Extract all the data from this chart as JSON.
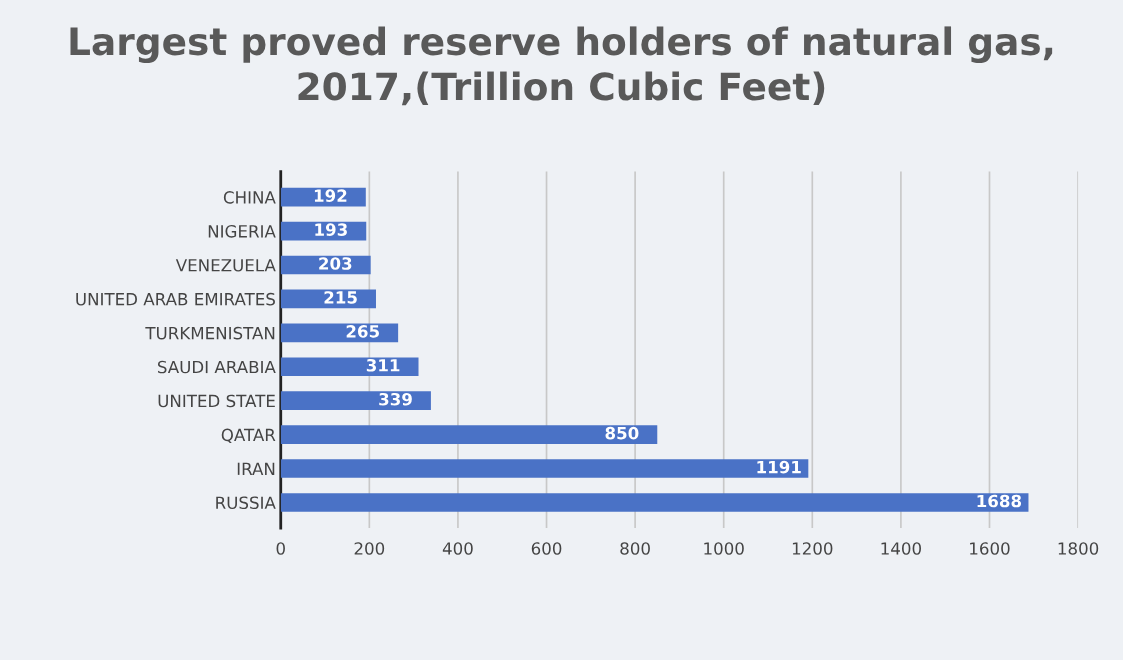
{
  "chart_data": {
    "type": "bar",
    "orientation": "horizontal",
    "title": "Largest proved reserve holders of natural gas,\n2017,(Trillion Cubic Feet)",
    "categories": [
      "CHINA",
      "NIGERIA",
      "VENEZUELA",
      "UNITED ARAB EMIRATES",
      "TURKMENISTAN",
      "SAUDI ARABIA",
      "UNITED STATE",
      "QATAR",
      "IRAN",
      "RUSSIA"
    ],
    "series": [
      {
        "color": "#4a72c6",
        "values": [
          192,
          193,
          203,
          215,
          265,
          311,
          339,
          850,
          1191,
          1688
        ]
      }
    ],
    "xlim": [
      0,
      1800
    ],
    "xticks": [
      0,
      200,
      400,
      600,
      800,
      1000,
      1200,
      1400,
      1600,
      1800
    ],
    "grid": "x",
    "data_labels": true
  }
}
